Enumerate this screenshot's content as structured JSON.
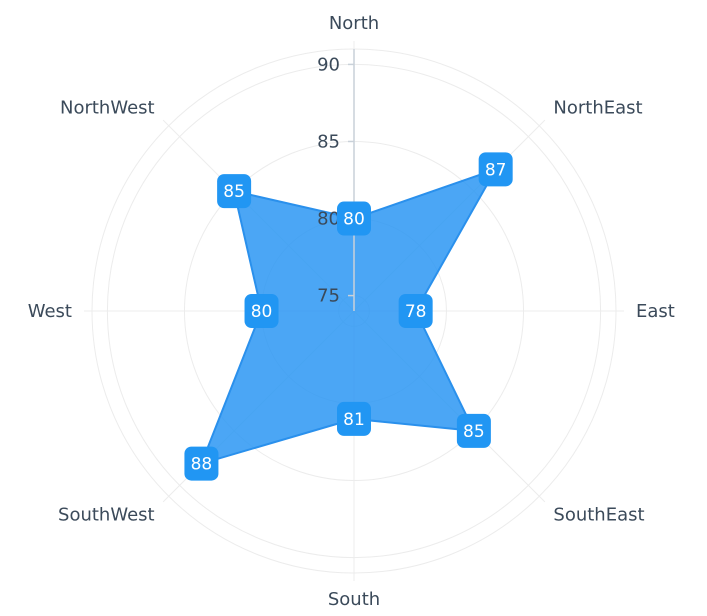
{
  "chart_data": {
    "type": "radar-area",
    "categories": [
      "North",
      "NorthEast",
      "East",
      "SouthEast",
      "South",
      "SouthWest",
      "West",
      "NorthWest"
    ],
    "series": [
      {
        "values": [
          80,
          87,
          78,
          85,
          81,
          88,
          80,
          85
        ]
      }
    ],
    "radial_axis": {
      "range": [
        74,
        91
      ],
      "ticks": [
        75,
        80,
        85,
        90
      ]
    },
    "grid": true,
    "legend": "none",
    "colors": {
      "fill": "#2b96f3",
      "stroke": "#2a90ec",
      "label_bg": "#2196f3",
      "label_text": "#ffffff",
      "grid": "#ececec",
      "axis_line": "#c9d1d9",
      "text": "#3b4a5a"
    }
  }
}
